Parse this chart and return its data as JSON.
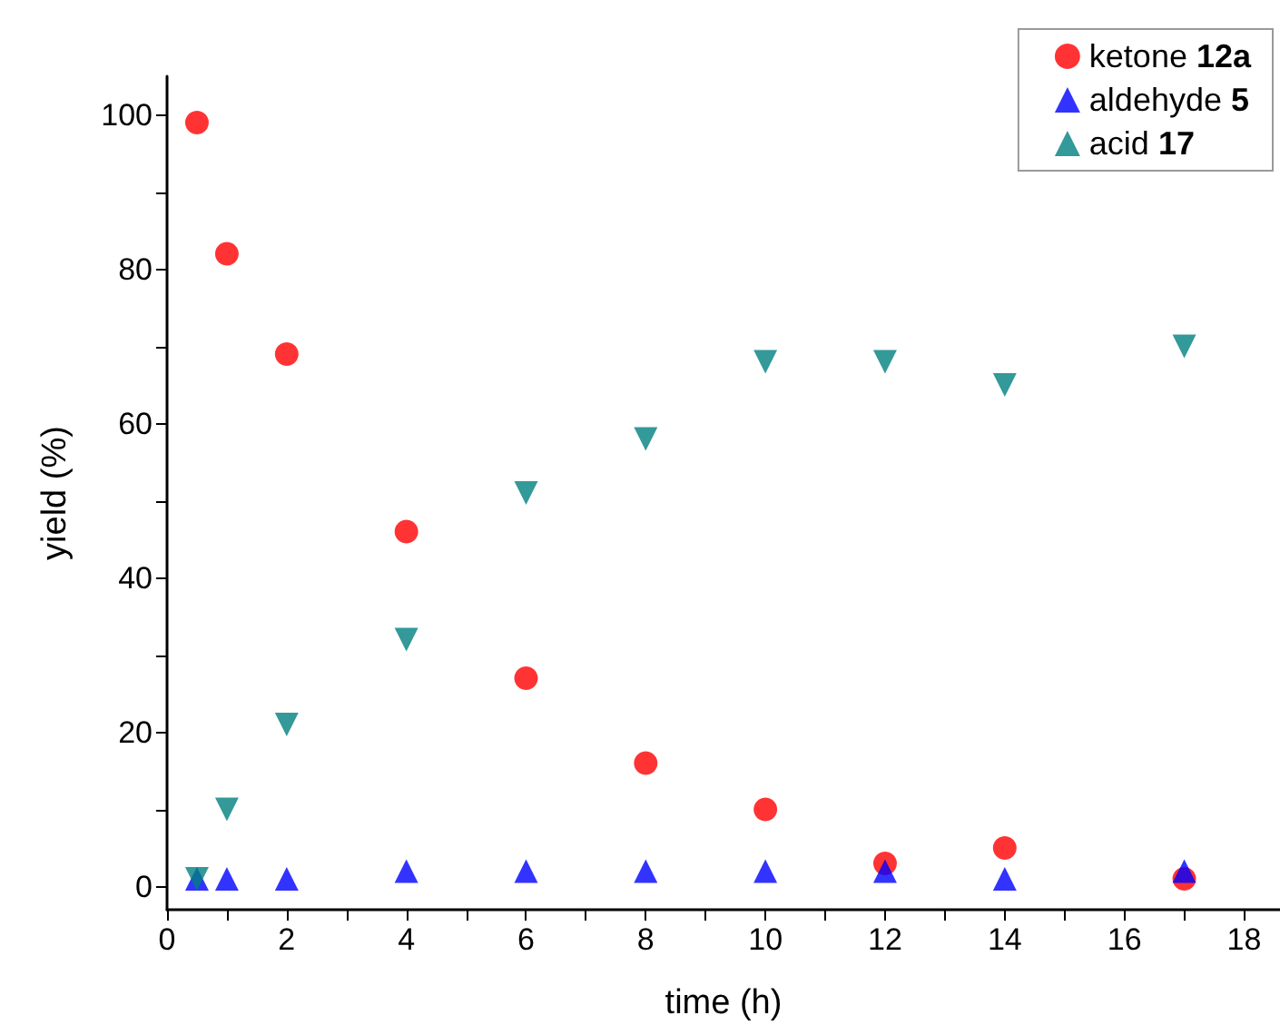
{
  "chart_data": {
    "type": "scatter",
    "xlabel": "time (h)",
    "ylabel": "yield (%)",
    "x": [
      0.5,
      1,
      2,
      4,
      6,
      8,
      10,
      12,
      14,
      17
    ],
    "series": [
      {
        "name": "ketone 12a",
        "color": "#ff0000",
        "marker": "circle",
        "values": [
          99,
          82,
          69,
          46,
          27,
          16,
          10,
          3,
          5,
          1
        ]
      },
      {
        "name": "aldehyde 5",
        "color": "#0000ff",
        "marker": "triangle",
        "values": [
          1,
          1,
          1,
          2,
          2,
          2,
          2,
          2,
          1,
          2
        ]
      },
      {
        "name": "acid 17",
        "color": "#008080",
        "marker": "triangle-down",
        "values": [
          1,
          10,
          21,
          32,
          51,
          58,
          68,
          68,
          65,
          70
        ]
      }
    ],
    "xlim": [
      0,
      18.6
    ],
    "ylim": [
      -3,
      105
    ],
    "xticks": [
      0,
      {
        "value": 1,
        "label": null
      },
      2,
      {
        "value": 3,
        "label": null
      },
      4,
      {
        "value": 5,
        "label": null
      },
      6,
      {
        "value": 7,
        "label": null
      },
      8,
      {
        "value": 9,
        "label": null
      },
      10,
      {
        "value": 11,
        "label": null
      },
      12,
      {
        "value": 13,
        "label": null
      },
      14,
      {
        "value": 15,
        "label": null
      },
      16,
      {
        "value": 17,
        "label": null
      },
      18
    ],
    "yticks": [
      0,
      {
        "value": 10,
        "label": null
      },
      20,
      {
        "value": 30,
        "label": null
      },
      40,
      {
        "value": 50,
        "label": null
      },
      60,
      {
        "value": 70,
        "label": null
      },
      80,
      {
        "value": 90,
        "label": null
      },
      100
    ],
    "grid": false,
    "legend": "top right"
  }
}
